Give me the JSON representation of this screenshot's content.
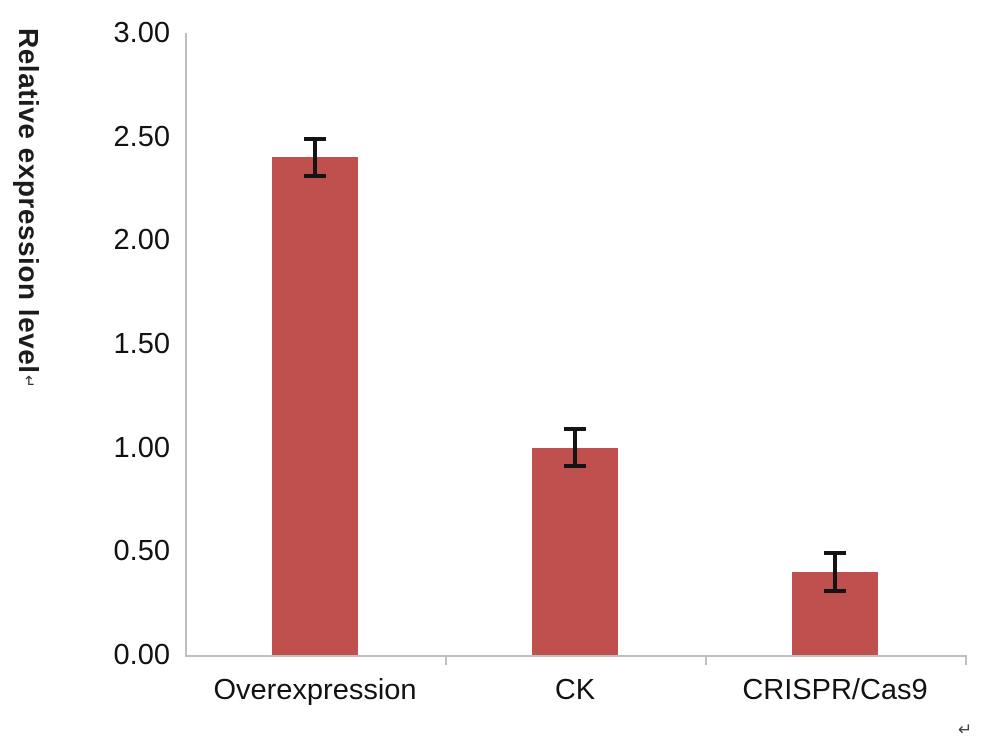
{
  "chart_data": {
    "type": "bar",
    "title": "",
    "categories": [
      "Overexpression",
      "CK",
      "CRISPR/Cas9"
    ],
    "values": [
      2.4,
      1.0,
      0.4
    ],
    "errors": [
      0.1,
      0.1,
      0.1
    ],
    "ylabel": "Relative expression level",
    "ylabel_suffix": "↵",
    "xlabel": "",
    "ylim": [
      0,
      3
    ],
    "yticks": [
      "0.00",
      "0.50",
      "1.00",
      "1.50",
      "2.00",
      "2.50",
      "3.00"
    ],
    "ytick_values": [
      0,
      0.5,
      1.0,
      1.5,
      2.0,
      2.5,
      3.0
    ],
    "bar_color": "#c0504d",
    "error_bar_color": "#141414",
    "axis_color": "#bfbfbf",
    "grid": false,
    "legend_position": "none",
    "corner_mark": "↵"
  }
}
